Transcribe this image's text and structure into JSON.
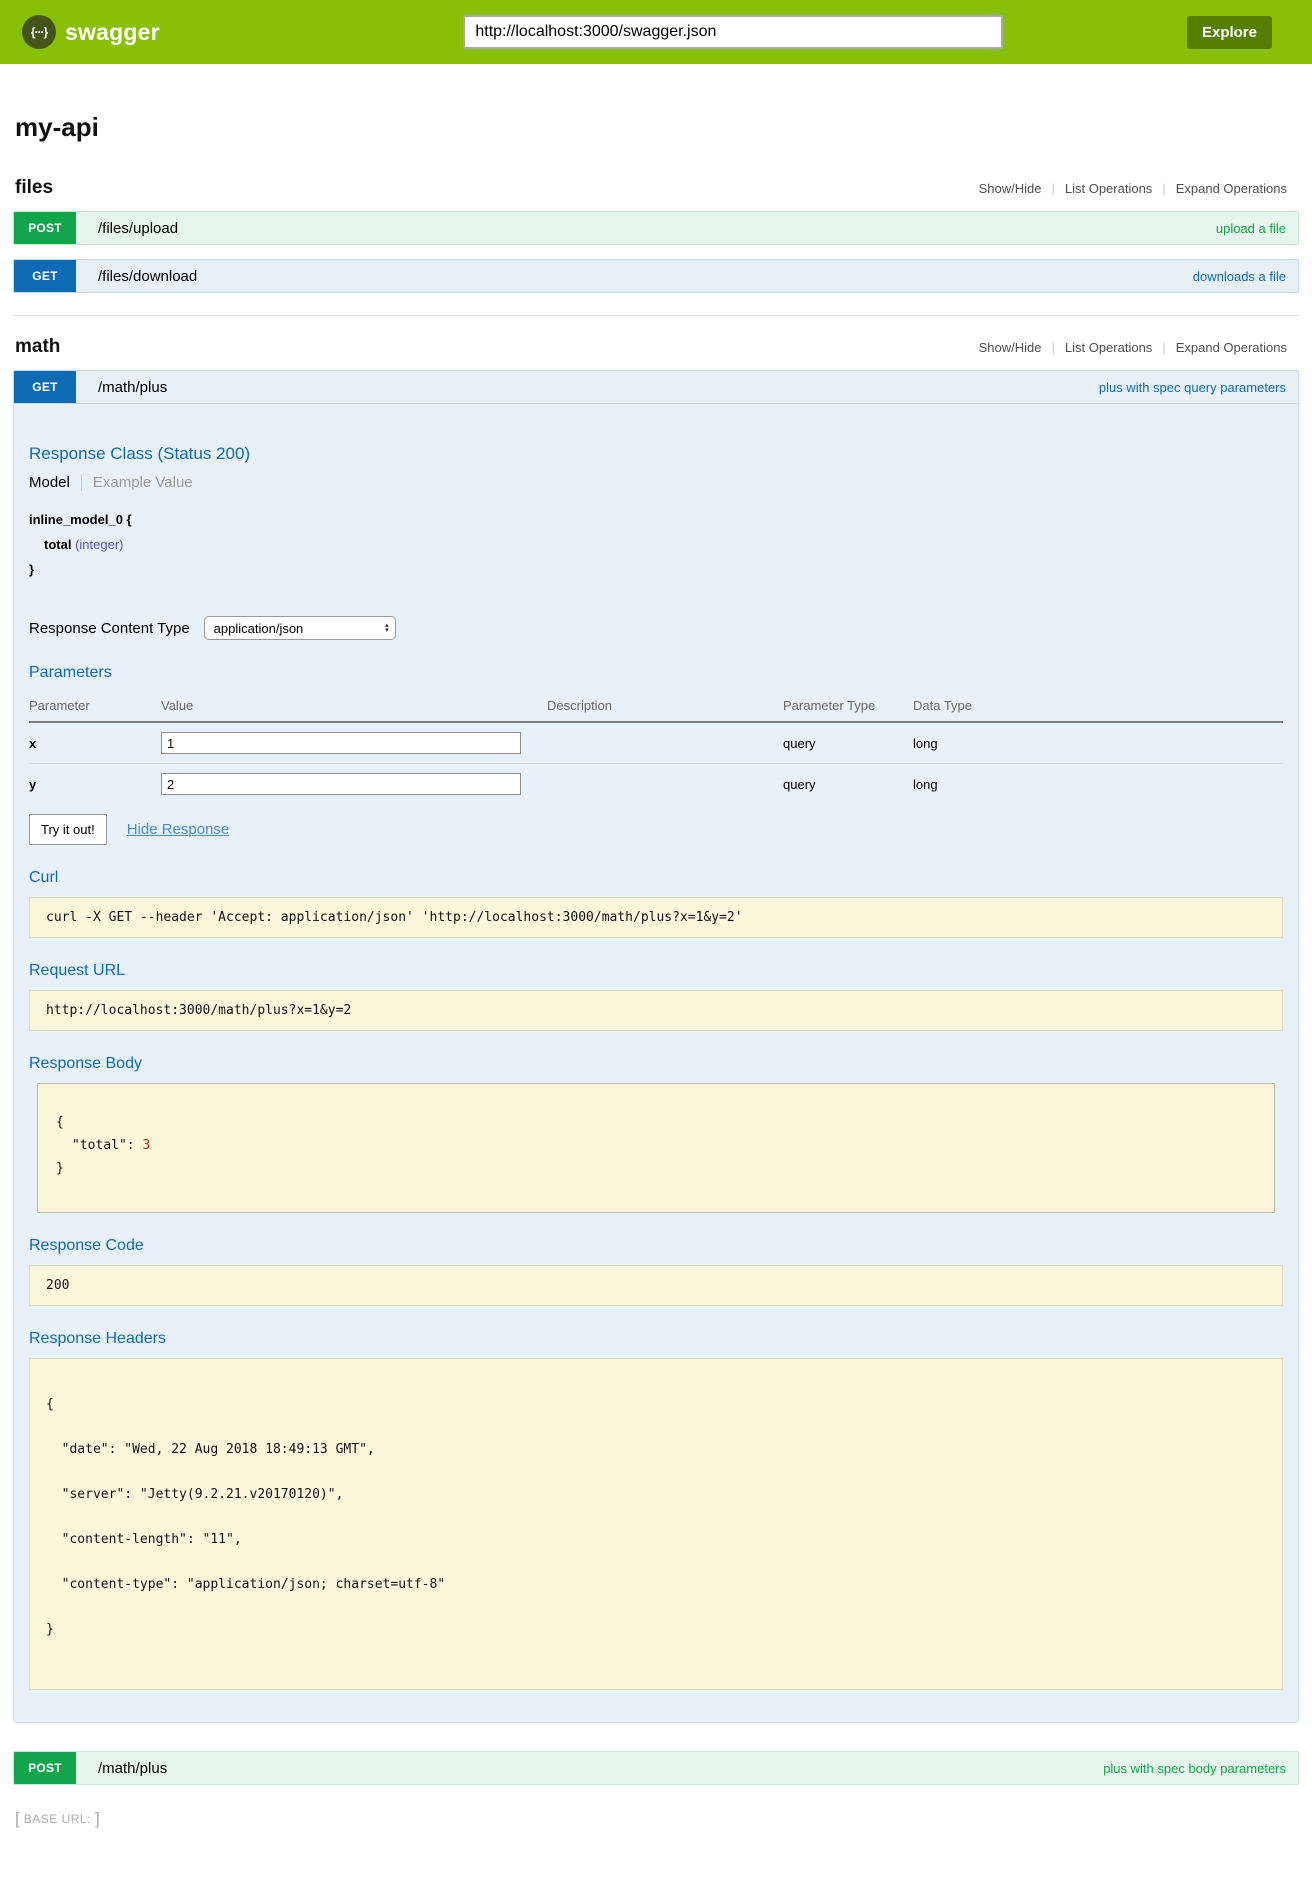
{
  "header": {
    "brand": "swagger",
    "logo_glyph": "{···}",
    "url_value": "http://localhost:3000/swagger.json",
    "explore_label": "Explore"
  },
  "page": {
    "title": "my-api"
  },
  "files_section": {
    "title": "files",
    "controls": {
      "show_hide": "Show/Hide",
      "list_operations": "List Operations",
      "expand_operations": "Expand Operations"
    },
    "endpoints": [
      {
        "method": "POST",
        "path": "/files/upload",
        "summary": "upload a file"
      },
      {
        "method": "GET",
        "path": "/files/download",
        "summary": "downloads a file"
      }
    ]
  },
  "math_section": {
    "title": "math",
    "controls": {
      "show_hide": "Show/Hide",
      "list_operations": "List Operations",
      "expand_operations": "Expand Operations"
    },
    "get_endpoint": {
      "method": "GET",
      "path": "/math/plus",
      "summary": "plus with spec query parameters"
    },
    "post_endpoint": {
      "method": "POST",
      "path": "/math/plus",
      "summary": "plus with spec body parameters"
    }
  },
  "operation_detail": {
    "response_class_heading": "Response Class (Status 200)",
    "tabs": {
      "model": "Model",
      "example": "Example Value"
    },
    "model": {
      "open": "inline_model_0 {",
      "prop_name": "total",
      "prop_type": "(integer)",
      "close": "}"
    },
    "response_content_type": {
      "label": "Response Content Type",
      "value": "application/json"
    },
    "parameters": {
      "heading": "Parameters",
      "columns": [
        "Parameter",
        "Value",
        "Description",
        "Parameter Type",
        "Data Type"
      ],
      "rows": [
        {
          "name": "x",
          "value": "1",
          "description": "",
          "param_type": "query",
          "data_type": "long"
        },
        {
          "name": "y",
          "value": "2",
          "description": "",
          "param_type": "query",
          "data_type": "long"
        }
      ]
    },
    "try_it_out_label": "Try it out!",
    "hide_response_label": "Hide Response",
    "curl": {
      "heading": "Curl",
      "command": "curl -X GET --header 'Accept: application/json' 'http://localhost:3000/math/plus?x=1&y=2'"
    },
    "request_url": {
      "heading": "Request URL",
      "value": "http://localhost:3000/math/plus?x=1&y=2"
    },
    "response_body": {
      "heading": "Response Body",
      "open": "{",
      "key": "\"total\":",
      "value": "3",
      "close": "}"
    },
    "response_code": {
      "heading": "Response Code",
      "value": "200"
    },
    "response_headers": {
      "heading": "Response Headers",
      "lines": [
        "{",
        "  \"date\": \"Wed, 22 Aug 2018 18:49:13 GMT\",",
        "  \"server\": \"Jetty(9.2.21.v20170120)\",",
        "  \"content-length\": \"11\",",
        "  \"content-type\": \"application/json; charset=utf-8\"",
        "}"
      ]
    }
  },
  "footer": {
    "open_bracket": "[",
    "label": "BASE URL:",
    "close_bracket": "]"
  },
  "colors": {
    "topbar_green": "#89bf04",
    "explore_green": "#547f00",
    "get_blue": "#0f6ab4",
    "post_green": "#10a54a",
    "get_row_bg": "#e7f0f7",
    "post_row_bg": "#e7f6ec",
    "panel_bg": "#e8f1f9",
    "code_bg": "#fcf6db"
  }
}
